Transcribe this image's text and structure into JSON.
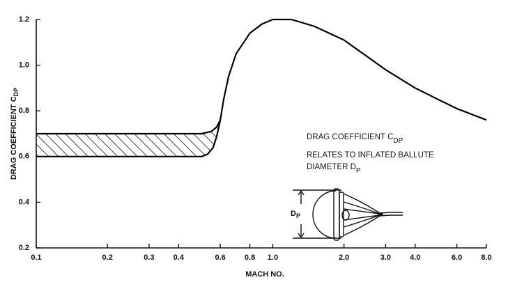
{
  "chart_data": {
    "type": "line",
    "x_label": "MACH NO.",
    "y_label": {
      "text": "DRAG COEFFICIENT C",
      "sub": "DP"
    },
    "log_x": true,
    "xlim": [
      0.1,
      8.0
    ],
    "ylim": [
      0.2,
      1.2
    ],
    "xticks": [
      0.1,
      0.2,
      0.3,
      0.4,
      0.6,
      0.8,
      {
        "value": 1,
        "label": "1.0"
      },
      {
        "value": 2,
        "label": "2.0"
      },
      {
        "value": 3,
        "label": "3.0"
      },
      {
        "value": 4,
        "label": "4.0"
      },
      {
        "value": 6,
        "label": "6.0"
      },
      {
        "value": 8,
        "label": "8.0"
      }
    ],
    "yticks": [
      0.2,
      0.4,
      0.6,
      0.8,
      {
        "value": 1,
        "label": "1.0"
      },
      1.2
    ],
    "hatched_band": true,
    "series": [
      {
        "color": "#000000",
        "x": [
          0.1,
          0.3,
          0.5,
          0.55,
          0.58,
          0.6,
          0.62,
          0.65,
          0.7,
          0.8,
          0.9,
          1.0,
          1.2,
          1.5,
          2.0,
          3.0,
          4.0,
          5.0,
          6.0,
          8.0
        ],
        "values": [
          0.7,
          0.7,
          0.7,
          0.71,
          0.73,
          0.76,
          0.85,
          0.95,
          1.05,
          1.14,
          1.18,
          1.2,
          1.2,
          1.17,
          1.11,
          0.98,
          0.9,
          0.85,
          0.81,
          0.76
        ]
      },
      {
        "color": "#000000",
        "x": [
          0.1,
          0.3,
          0.5,
          0.53,
          0.56,
          0.58,
          0.6
        ],
        "values": [
          0.6,
          0.6,
          0.6,
          0.61,
          0.64,
          0.69,
          0.76
        ]
      }
    ],
    "annotations": [
      {
        "text": "DRAG COEFFICIENT C",
        "sub": "DP"
      },
      {
        "text": "RELATES TO INFLATED BALLUTE"
      },
      {
        "text": "DIAMETER D",
        "sub": "P"
      }
    ],
    "diagram_label": {
      "text": "D",
      "sub": "P"
    }
  }
}
